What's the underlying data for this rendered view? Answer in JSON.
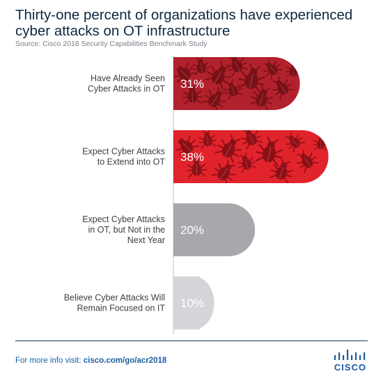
{
  "header": {
    "title_line1": "Thirty-one percent of organizations have experienced",
    "title_line2": "cyber attacks on OT infrastructure",
    "source": "Source: Cisco 2018 Security Capabilities Benchmark Study"
  },
  "footer": {
    "text": "For more info visit:",
    "link": "cisco.com/go/acr2018"
  },
  "logo": {
    "wordmark": "CISCO"
  },
  "colors": {
    "bar_dark_red": "#b2222c",
    "bar_red": "#e1232c",
    "bar_gray": "#a6a8ab",
    "bar_light_gray": "#d3d5d8",
    "bug_dark": "#7a1017",
    "bug_light": "#8e1016",
    "label_text": "#3b3f44",
    "title": "#0d2840",
    "link": "#1b5ea0"
  },
  "chart_data": {
    "type": "bar",
    "orientation": "horizontal",
    "categories": [
      [
        "Have Already Seen",
        "Cyber Attacks in OT"
      ],
      [
        "Expect Cyber Attacks",
        "to Extend into OT"
      ],
      [
        "Expect Cyber Attacks",
        "in OT, but Not in the",
        "Next Year"
      ],
      [
        "Believe Cyber Attacks Will",
        "Remain Focused on IT"
      ]
    ],
    "values": [
      31,
      38,
      20,
      10
    ],
    "value_labels": [
      "31%",
      "38%",
      "20%",
      "10%"
    ],
    "bar_colors": [
      "#b2222c",
      "#e1232c",
      "#a6a8ab",
      "#d3d5d8"
    ],
    "bug_decoration": [
      true,
      true,
      false,
      false
    ],
    "title": "Thirty-one percent of organizations have experienced cyber attacks on OT infrastructure",
    "xlabel": "",
    "ylabel": ""
  }
}
